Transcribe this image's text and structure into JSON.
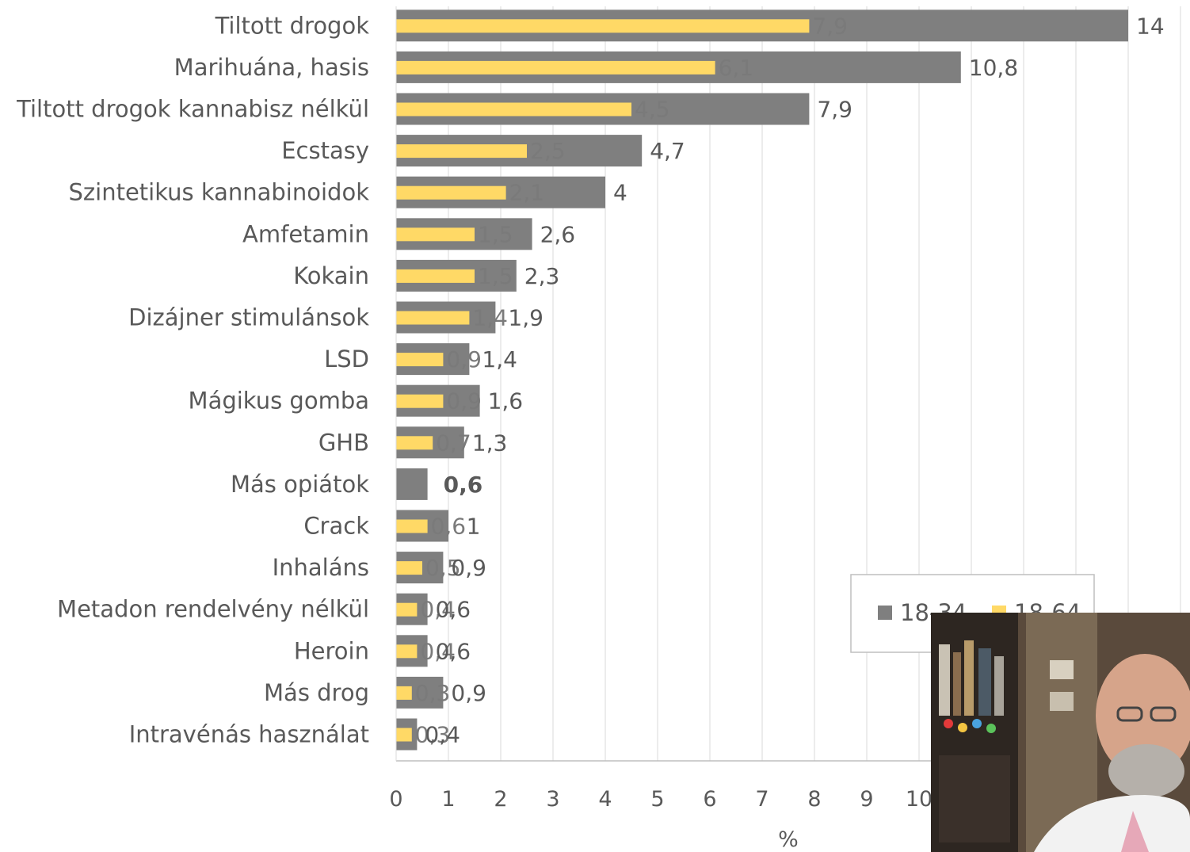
{
  "chart_data": {
    "type": "bar",
    "orientation": "horizontal",
    "categories": [
      "Tiltott drogok",
      "Marihuána, hasis",
      "Tiltott drogok kannabisz nélkül",
      "Ecstasy",
      "Szintetikus kannabinoidok",
      "Amfetamin",
      "Kokain",
      "Dizájner stimulánsok",
      "LSD",
      "Mágikus gomba",
      "GHB",
      "Más opiátok",
      "Crack",
      "Inhaláns",
      "Metadon rendelvény nélkül",
      "Heroin",
      "Más drog",
      "Intravénás használat"
    ],
    "series": [
      {
        "name": "18-34",
        "color": "#7f7f7f",
        "values": [
          14,
          10.8,
          7.9,
          4.7,
          4,
          2.6,
          2.3,
          1.9,
          1.4,
          1.6,
          1.3,
          0.6,
          1,
          0.9,
          0.6,
          0.6,
          0.9,
          0.4
        ],
        "labels": [
          "14",
          "10,8",
          "7,9",
          "4,7",
          "4",
          "2,6",
          "2,3",
          "1,9",
          "1,4",
          "1,6",
          "1,3",
          "0,6",
          "1",
          "0,9",
          "0,6",
          "0,6",
          "0,9",
          "0,4"
        ]
      },
      {
        "name": "18-64",
        "color": "#ffd966",
        "values": [
          7.9,
          6.1,
          4.5,
          2.5,
          2.1,
          1.5,
          1.5,
          1.4,
          0.9,
          0.9,
          0.7,
          null,
          0.6,
          0.5,
          0.4,
          0.4,
          0.3,
          0.3
        ],
        "labels": [
          "7,9",
          "6,1",
          "4,5",
          "2,5",
          "2,1",
          "1,5",
          "1,5",
          "1,4",
          "0,9",
          "0,9",
          "0,7",
          "",
          "0,6",
          "0,5",
          "0,4",
          "0,4",
          "0,3",
          "0,3"
        ]
      }
    ],
    "xaxis": {
      "ticks": [
        "0",
        "1",
        "2",
        "3",
        "4",
        "5",
        "6",
        "7",
        "8",
        "9",
        "10"
      ],
      "label": "%",
      "xlim": [
        0,
        15
      ]
    },
    "grid": true,
    "legend": {
      "position": "bottom-right",
      "entries": [
        "18-34",
        "18-64"
      ]
    }
  },
  "overlay": {
    "webcam": "webcam-overlay"
  }
}
